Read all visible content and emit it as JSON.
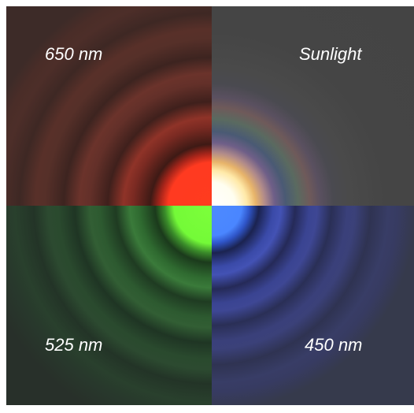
{
  "panels": [
    {
      "label": "650 nm",
      "color": "#ff3b1e"
    },
    {
      "label": "Sunlight",
      "color": "#ffffff"
    },
    {
      "label": "525 nm",
      "color": "#7dff3a"
    },
    {
      "label": "450 nm",
      "color": "#4d8aff"
    }
  ]
}
